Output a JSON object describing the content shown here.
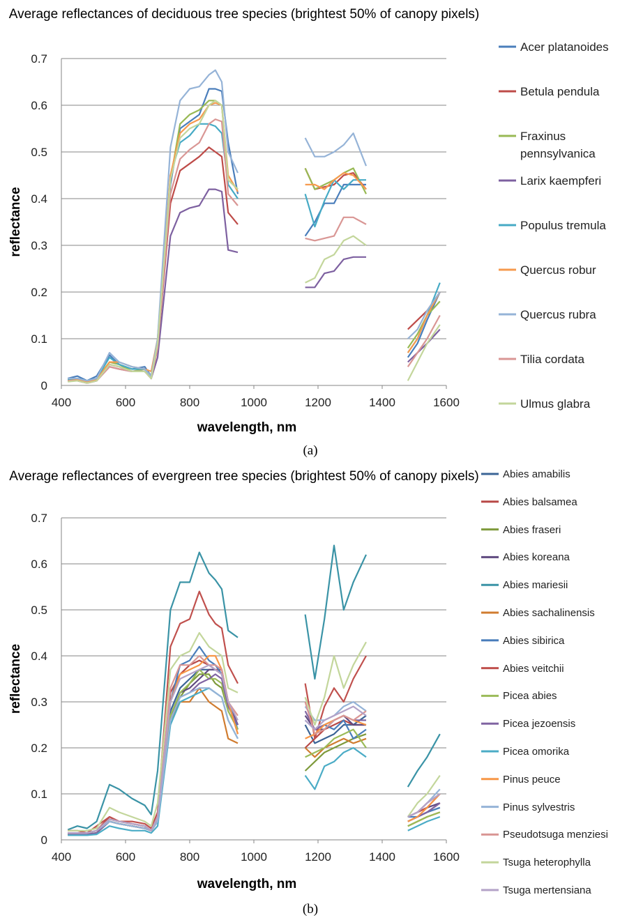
{
  "chart_data": [
    {
      "type": "line",
      "title": "Average reflectances of deciduous tree species (brightest 50% of canopy pixels)",
      "caption": "(a)",
      "xlabel": "wavelength, nm",
      "ylabel": "reflectance",
      "xlim": [
        400,
        1600
      ],
      "xticks": [
        400,
        600,
        800,
        1000,
        1200,
        1400,
        1600
      ],
      "ylim": [
        0,
        0.7
      ],
      "yticks": [
        0,
        0.1,
        0.2,
        0.3,
        0.4,
        0.5,
        0.6,
        0.7
      ],
      "grid": true,
      "legend": "right",
      "x": [
        420,
        450,
        480,
        510,
        550,
        580,
        620,
        660,
        680,
        700,
        740,
        770,
        800,
        830,
        860,
        880,
        900,
        920,
        950,
        1050,
        1160,
        1190,
        1220,
        1250,
        1280,
        1310,
        1350,
        1420,
        1480,
        1510,
        1540,
        1580
      ],
      "series": [
        {
          "name": "Acer platanoides",
          "color": "#4A7EBB",
          "values": [
            0.015,
            0.02,
            0.01,
            0.02,
            0.065,
            0.045,
            0.035,
            0.04,
            0.02,
            0.09,
            0.43,
            0.55,
            0.565,
            0.58,
            0.635,
            0.635,
            0.63,
            0.52,
            0.41,
            null,
            0.32,
            0.35,
            0.39,
            0.39,
            0.43,
            0.43,
            0.43,
            null,
            0.06,
            0.09,
            0.14,
            0.2
          ]
        },
        {
          "name": "Betula pendula",
          "color": "#BE4B48",
          "values": [
            0.01,
            0.01,
            0.005,
            0.01,
            0.045,
            0.04,
            0.03,
            0.03,
            0.015,
            0.08,
            0.39,
            0.46,
            0.475,
            0.49,
            0.51,
            0.5,
            0.49,
            0.37,
            0.345,
            null,
            0.465,
            0.42,
            0.425,
            0.43,
            0.45,
            0.455,
            0.42,
            null,
            0.12,
            0.14,
            0.16,
            0.2
          ]
        },
        {
          "name": "Fraxinus pennsylvanica",
          "color": "#98B954",
          "values": [
            0.012,
            0.015,
            0.008,
            0.015,
            0.05,
            0.045,
            0.03,
            0.035,
            0.02,
            0.09,
            0.44,
            0.56,
            0.58,
            0.59,
            0.61,
            0.61,
            0.6,
            0.44,
            0.42,
            null,
            0.465,
            0.42,
            0.43,
            0.44,
            0.455,
            0.465,
            0.41,
            null,
            0.08,
            0.11,
            0.15,
            0.18
          ]
        },
        {
          "name": "Larix kaempferi",
          "color": "#7D60A0",
          "values": [
            0.01,
            0.01,
            0.005,
            0.01,
            0.04,
            0.035,
            0.03,
            0.03,
            0.015,
            0.06,
            0.32,
            0.37,
            0.38,
            0.385,
            0.42,
            0.42,
            0.415,
            0.29,
            0.285,
            null,
            0.21,
            0.21,
            0.24,
            0.245,
            0.27,
            0.275,
            0.275,
            null,
            0.05,
            0.07,
            0.09,
            0.12
          ]
        },
        {
          "name": "Populus tremula",
          "color": "#46AAC5",
          "values": [
            0.012,
            0.015,
            0.01,
            0.015,
            0.06,
            0.045,
            0.035,
            0.035,
            0.015,
            0.09,
            0.45,
            0.52,
            0.535,
            0.56,
            0.56,
            0.555,
            0.54,
            0.43,
            0.4,
            null,
            0.41,
            0.34,
            0.395,
            0.44,
            0.42,
            0.44,
            0.44,
            null,
            0.07,
            0.1,
            0.15,
            0.22
          ]
        },
        {
          "name": "Quercus robur",
          "color": "#F69A4E",
          "values": [
            0.01,
            0.012,
            0.008,
            0.012,
            0.05,
            0.05,
            0.04,
            0.035,
            0.03,
            0.1,
            0.45,
            0.54,
            0.56,
            0.57,
            0.6,
            0.605,
            0.6,
            0.45,
            0.415,
            null,
            0.43,
            0.43,
            0.42,
            0.44,
            0.455,
            0.45,
            0.42,
            null,
            0.07,
            0.1,
            0.15,
            0.2
          ]
        },
        {
          "name": "Quercus rubra",
          "color": "#95B3D7",
          "values": [
            0.015,
            0.015,
            0.01,
            0.015,
            0.07,
            0.05,
            0.04,
            0.035,
            0.02,
            0.1,
            0.51,
            0.61,
            0.635,
            0.64,
            0.665,
            0.675,
            0.65,
            0.5,
            0.455,
            null,
            0.53,
            0.49,
            0.49,
            0.5,
            0.515,
            0.54,
            0.47,
            null,
            0.1,
            0.12,
            0.16,
            0.2
          ]
        },
        {
          "name": "Tilia cordata",
          "color": "#D99694",
          "values": [
            0.01,
            0.01,
            0.005,
            0.01,
            0.04,
            0.035,
            0.03,
            0.03,
            0.015,
            0.08,
            0.41,
            0.485,
            0.505,
            0.52,
            0.56,
            0.57,
            0.565,
            0.41,
            0.385,
            null,
            0.315,
            0.31,
            0.315,
            0.32,
            0.36,
            0.36,
            0.345,
            null,
            0.04,
            0.07,
            0.1,
            0.15
          ]
        },
        {
          "name": "Ulmus glabra",
          "color": "#C3D69B",
          "values": [
            0.008,
            0.01,
            0.005,
            0.01,
            0.045,
            0.04,
            0.03,
            0.03,
            0.015,
            0.09,
            0.44,
            0.53,
            0.55,
            0.56,
            0.6,
            0.61,
            0.6,
            0.44,
            0.42,
            null,
            0.22,
            0.23,
            0.27,
            0.28,
            0.31,
            0.32,
            0.3,
            null,
            0.01,
            0.05,
            0.09,
            0.13
          ]
        }
      ]
    },
    {
      "type": "line",
      "title": "Average reflectances of evergreen tree species (brightest 50% of canopy pixels)",
      "caption": "(b)",
      "xlabel": "wavelength, nm",
      "ylabel": "reflectance",
      "xlim": [
        400,
        1600
      ],
      "xticks": [
        400,
        600,
        800,
        1000,
        1200,
        1400,
        1600
      ],
      "ylim": [
        0,
        0.7
      ],
      "yticks": [
        0,
        0.1,
        0.2,
        0.3,
        0.4,
        0.5,
        0.6,
        0.7
      ],
      "grid": true,
      "legend": "right",
      "x": [
        420,
        450,
        480,
        510,
        550,
        580,
        620,
        660,
        680,
        700,
        740,
        770,
        800,
        830,
        860,
        880,
        900,
        920,
        950,
        1050,
        1160,
        1190,
        1220,
        1250,
        1280,
        1310,
        1350,
        1420,
        1480,
        1510,
        1540,
        1580
      ],
      "series": [
        {
          "name": "Abies amabilis",
          "color": "#3B6496",
          "values": [
            0.015,
            0.015,
            0.015,
            0.02,
            0.04,
            0.035,
            0.03,
            0.025,
            0.02,
            0.04,
            0.28,
            0.33,
            0.35,
            0.37,
            0.37,
            0.37,
            0.36,
            0.3,
            0.25,
            null,
            0.25,
            0.21,
            0.22,
            0.23,
            0.25,
            0.25,
            0.27,
            null,
            0.04,
            0.05,
            0.06,
            0.07
          ]
        },
        {
          "name": "Abies balsamea",
          "color": "#B84947",
          "values": [
            0.015,
            0.015,
            0.015,
            0.02,
            0.05,
            0.04,
            0.035,
            0.03,
            0.02,
            0.05,
            0.32,
            0.36,
            0.38,
            0.39,
            0.38,
            0.37,
            0.37,
            0.3,
            0.23,
            null,
            0.2,
            0.22,
            0.24,
            0.25,
            0.26,
            0.25,
            0.25,
            null,
            0.04,
            0.05,
            0.06,
            0.08
          ]
        },
        {
          "name": "Abies fraseri",
          "color": "#7E9A3B",
          "values": [
            0.012,
            0.012,
            0.012,
            0.015,
            0.04,
            0.035,
            0.03,
            0.025,
            0.02,
            0.04,
            0.27,
            0.31,
            0.34,
            0.36,
            0.36,
            0.34,
            0.33,
            0.28,
            0.24,
            null,
            0.15,
            0.17,
            0.19,
            0.2,
            0.21,
            0.22,
            0.23,
            null,
            0.03,
            0.04,
            0.05,
            0.06
          ]
        },
        {
          "name": "Abies koreana",
          "color": "#5F4A80",
          "values": [
            0.012,
            0.012,
            0.012,
            0.015,
            0.04,
            0.035,
            0.03,
            0.025,
            0.02,
            0.04,
            0.27,
            0.32,
            0.33,
            0.35,
            0.37,
            0.37,
            0.36,
            0.3,
            0.25,
            null,
            0.27,
            0.24,
            0.24,
            0.26,
            0.27,
            0.25,
            0.25,
            null,
            0.05,
            0.06,
            0.07,
            0.08
          ]
        },
        {
          "name": "Abies mariesii",
          "color": "#3A93A6",
          "values": [
            0.022,
            0.03,
            0.025,
            0.04,
            0.12,
            0.11,
            0.09,
            0.075,
            0.055,
            0.15,
            0.5,
            0.56,
            0.56,
            0.625,
            0.58,
            0.565,
            0.545,
            0.455,
            0.44,
            null,
            0.49,
            0.35,
            0.48,
            0.64,
            0.5,
            0.56,
            0.62,
            null,
            0.115,
            0.15,
            0.18,
            0.23
          ]
        },
        {
          "name": "Abies sachalinensis",
          "color": "#D07C30",
          "values": [
            0.015,
            0.015,
            0.015,
            0.02,
            0.04,
            0.035,
            0.03,
            0.025,
            0.02,
            0.04,
            0.26,
            0.3,
            0.3,
            0.33,
            0.3,
            0.29,
            0.28,
            0.22,
            0.21,
            null,
            0.2,
            0.18,
            0.2,
            0.21,
            0.22,
            0.21,
            0.22,
            null,
            0.03,
            0.04,
            0.05,
            0.06
          ]
        },
        {
          "name": "Abies sibirica",
          "color": "#4A7EBB",
          "values": [
            0.015,
            0.015,
            0.015,
            0.02,
            0.045,
            0.04,
            0.035,
            0.03,
            0.02,
            0.04,
            0.3,
            0.38,
            0.39,
            0.42,
            0.39,
            0.38,
            0.36,
            0.3,
            0.24,
            null,
            0.26,
            0.24,
            0.25,
            0.24,
            0.26,
            0.22,
            0.24,
            null,
            0.05,
            0.05,
            0.06,
            0.07
          ]
        },
        {
          "name": "Abies veitchii",
          "color": "#C0504D",
          "values": [
            0.02,
            0.02,
            0.015,
            0.03,
            0.05,
            0.04,
            0.04,
            0.035,
            0.025,
            0.06,
            0.42,
            0.47,
            0.48,
            0.54,
            0.49,
            0.47,
            0.46,
            0.38,
            0.34,
            null,
            0.34,
            0.22,
            0.29,
            0.33,
            0.3,
            0.35,
            0.4,
            null,
            0.05,
            0.06,
            0.07,
            0.1
          ]
        },
        {
          "name": "Picea abies",
          "color": "#9BBB59",
          "values": [
            0.012,
            0.012,
            0.012,
            0.015,
            0.04,
            0.035,
            0.03,
            0.025,
            0.02,
            0.04,
            0.27,
            0.32,
            0.34,
            0.37,
            0.35,
            0.35,
            0.34,
            0.28,
            0.24,
            null,
            0.18,
            0.19,
            0.2,
            0.22,
            0.23,
            0.24,
            0.2,
            null,
            0.03,
            0.04,
            0.05,
            0.06
          ]
        },
        {
          "name": "Picea jezoensis",
          "color": "#8064A2",
          "values": [
            0.012,
            0.012,
            0.012,
            0.015,
            0.04,
            0.035,
            0.03,
            0.025,
            0.02,
            0.04,
            0.26,
            0.31,
            0.32,
            0.34,
            0.35,
            0.36,
            0.35,
            0.29,
            0.25,
            null,
            0.28,
            0.24,
            0.25,
            0.26,
            0.27,
            0.26,
            0.26,
            null,
            0.04,
            0.05,
            0.06,
            0.08
          ]
        },
        {
          "name": "Picea omorika",
          "color": "#4BACC6",
          "values": [
            0.01,
            0.01,
            0.01,
            0.012,
            0.03,
            0.025,
            0.02,
            0.02,
            0.015,
            0.03,
            0.25,
            0.3,
            0.31,
            0.32,
            0.33,
            0.32,
            0.31,
            0.26,
            0.22,
            null,
            0.14,
            0.11,
            0.16,
            0.17,
            0.19,
            0.2,
            0.18,
            null,
            0.02,
            0.03,
            0.04,
            0.05
          ]
        },
        {
          "name": "Pinus peuce",
          "color": "#F79646",
          "values": [
            0.015,
            0.015,
            0.015,
            0.02,
            0.045,
            0.04,
            0.035,
            0.03,
            0.02,
            0.05,
            0.3,
            0.36,
            0.37,
            0.38,
            0.4,
            0.4,
            0.37,
            0.3,
            0.23,
            null,
            0.22,
            0.23,
            0.25,
            0.26,
            0.27,
            0.26,
            0.25,
            null,
            0.04,
            0.05,
            0.07,
            0.1
          ]
        },
        {
          "name": "Pinus sylvestris",
          "color": "#95B3D7",
          "values": [
            0.015,
            0.015,
            0.015,
            0.02,
            0.04,
            0.035,
            0.03,
            0.025,
            0.02,
            0.04,
            0.26,
            0.31,
            0.32,
            0.33,
            0.33,
            0.32,
            0.31,
            0.26,
            0.22,
            null,
            0.29,
            0.26,
            0.26,
            0.27,
            0.29,
            0.3,
            0.28,
            null,
            0.05,
            0.06,
            0.08,
            0.11
          ]
        },
        {
          "name": "Pseudotsuga menziesi",
          "color": "#D99694",
          "values": [
            0.015,
            0.015,
            0.015,
            0.02,
            0.045,
            0.04,
            0.035,
            0.03,
            0.02,
            0.05,
            0.33,
            0.38,
            0.38,
            0.4,
            0.38,
            0.38,
            0.37,
            0.3,
            0.27,
            null,
            0.3,
            0.23,
            0.24,
            0.26,
            0.27,
            0.26,
            0.28,
            null,
            0.05,
            0.06,
            0.08,
            0.1
          ]
        },
        {
          "name": "Tsuga heterophylla",
          "color": "#C3D69B",
          "values": [
            0.02,
            0.02,
            0.02,
            0.025,
            0.07,
            0.06,
            0.05,
            0.04,
            0.03,
            0.08,
            0.37,
            0.4,
            0.41,
            0.45,
            0.42,
            0.41,
            0.4,
            0.33,
            0.32,
            null,
            0.31,
            0.25,
            0.31,
            0.4,
            0.33,
            0.38,
            0.43,
            null,
            0.05,
            0.08,
            0.1,
            0.14
          ]
        },
        {
          "name": "Tsuga mertensiana",
          "color": "#B3A2C7",
          "values": [
            0.015,
            0.015,
            0.015,
            0.02,
            0.045,
            0.04,
            0.035,
            0.03,
            0.02,
            0.05,
            0.3,
            0.35,
            0.36,
            0.37,
            0.38,
            0.37,
            0.36,
            0.3,
            0.26,
            null,
            0.26,
            0.24,
            0.26,
            0.27,
            0.28,
            0.29,
            0.27,
            null,
            0.05,
            0.06,
            0.08,
            0.1
          ]
        }
      ]
    }
  ]
}
